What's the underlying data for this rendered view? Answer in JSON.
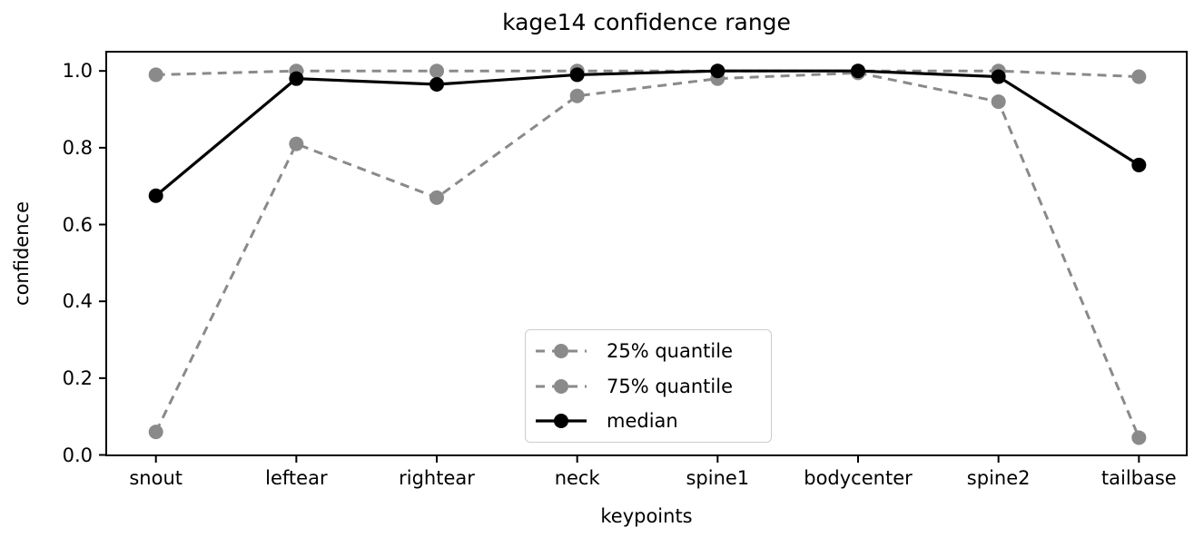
{
  "chart_data": {
    "type": "line",
    "title": "kage14 confidence range",
    "xlabel": "keypoints",
    "ylabel": "confidence",
    "categories": [
      "snout",
      "leftear",
      "rightear",
      "neck",
      "spine1",
      "bodycenter",
      "spine2",
      "tailbase"
    ],
    "series": [
      {
        "name": "25% quantile",
        "style": "dashed",
        "color": "#8a8a8a",
        "values": [
          0.06,
          0.81,
          0.67,
          0.935,
          0.98,
          0.995,
          0.92,
          0.045
        ]
      },
      {
        "name": "75% quantile",
        "style": "dashed",
        "color": "#8a8a8a",
        "values": [
          0.99,
          1.0,
          1.0,
          1.0,
          1.0,
          1.0,
          1.0,
          0.985
        ]
      },
      {
        "name": "median",
        "style": "solid",
        "color": "#000000",
        "values": [
          0.675,
          0.98,
          0.965,
          0.99,
          1.0,
          1.0,
          0.985,
          0.755
        ]
      }
    ],
    "ytick_labels": [
      "0.0",
      "0.2",
      "0.4",
      "0.6",
      "0.8",
      "1.0"
    ],
    "ytick_values": [
      0.0,
      0.2,
      0.4,
      0.6,
      0.8,
      1.0
    ],
    "ylim": [
      0.0,
      1.05
    ],
    "grid": false,
    "legend_position": "lower center",
    "axis_color": "#000000",
    "legend_border_color": "#cccccc"
  }
}
